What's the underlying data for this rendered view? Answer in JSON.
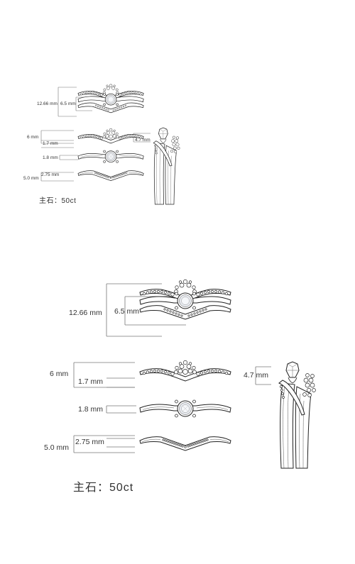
{
  "labels": {
    "stack_height": "12.66 mm",
    "stack_center_stone": "6.5 mm",
    "crown_band_height": "6 mm",
    "crown_band_thickness": "1.7 mm",
    "solitaire_band": "1.8 mm",
    "chevron_band_height": "5.0 mm",
    "chevron_band_thickness": "2.75 mm",
    "side_view_height": "4.7 mm"
  },
  "footer": {
    "text": "主石：50ct"
  }
}
